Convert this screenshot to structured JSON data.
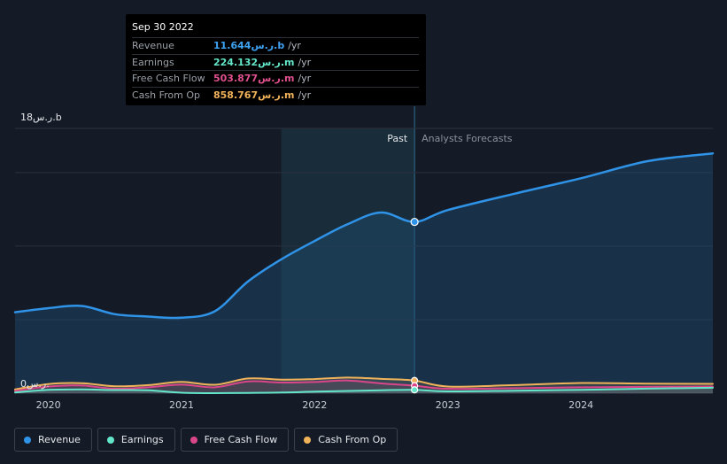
{
  "tooltip": {
    "date": "Sep 30 2022",
    "rows": [
      {
        "label": "Revenue",
        "value": "11.644ر.س.b",
        "unit": "/yr",
        "color": "#3fa3f4"
      },
      {
        "label": "Earnings",
        "value": "224.132ر.س.m",
        "unit": "/yr",
        "color": "#63e6c9"
      },
      {
        "label": "Free Cash Flow",
        "value": "503.877ر.س.m",
        "unit": "/yr",
        "color": "#e0508e"
      },
      {
        "label": "Cash From Op",
        "value": "858.767ر.س.m",
        "unit": "/yr",
        "color": "#f1b35a"
      }
    ]
  },
  "legend": [
    {
      "label": "Revenue",
      "color": "#2f93e8"
    },
    {
      "label": "Earnings",
      "color": "#63e6c9"
    },
    {
      "label": "Free Cash Flow",
      "color": "#d9468a"
    },
    {
      "label": "Cash From Op",
      "color": "#f1b35a"
    }
  ],
  "chart_data": {
    "type": "area",
    "y_top_label": "18ر.س.b",
    "y_zero_label": "0ر.س.",
    "past_label": "Past",
    "forecast_label": "Analysts Forecasts",
    "ylim": [
      0,
      18
    ],
    "xlim": [
      2019.75,
      2024.99
    ],
    "divider_x": 2022.75,
    "highlight_start": 2021.75,
    "x_ticks": [
      {
        "v": 2020.0,
        "label": "2020"
      },
      {
        "v": 2021.0,
        "label": "2021"
      },
      {
        "v": 2022.0,
        "label": "2022"
      },
      {
        "v": 2023.0,
        "label": "2023"
      },
      {
        "v": 2024.0,
        "label": "2024"
      }
    ],
    "y_grid": [
      0,
      5,
      10,
      15,
      18
    ],
    "series": [
      {
        "name": "Revenue",
        "color": "#2f93e8",
        "fill": true,
        "points": [
          [
            2019.75,
            5.5
          ],
          [
            2020.0,
            5.78
          ],
          [
            2020.25,
            5.93
          ],
          [
            2020.5,
            5.37
          ],
          [
            2020.75,
            5.21
          ],
          [
            2021.0,
            5.13
          ],
          [
            2021.25,
            5.57
          ],
          [
            2021.5,
            7.6
          ],
          [
            2021.75,
            9.1
          ],
          [
            2022.0,
            10.35
          ],
          [
            2022.25,
            11.5
          ],
          [
            2022.5,
            12.28
          ],
          [
            2022.75,
            11.644
          ],
          [
            2023.0,
            12.45
          ],
          [
            2023.5,
            13.56
          ],
          [
            2024.0,
            14.61
          ],
          [
            2024.5,
            15.77
          ],
          [
            2024.99,
            16.3
          ]
        ]
      },
      {
        "name": "Cash From Op",
        "color": "#f1b35a",
        "fill": false,
        "points": [
          [
            2019.75,
            0.25
          ],
          [
            2020.0,
            0.62
          ],
          [
            2020.25,
            0.68
          ],
          [
            2020.5,
            0.47
          ],
          [
            2020.75,
            0.55
          ],
          [
            2021.0,
            0.77
          ],
          [
            2021.25,
            0.57
          ],
          [
            2021.5,
            1.0
          ],
          [
            2021.75,
            0.92
          ],
          [
            2022.0,
            0.96
          ],
          [
            2022.25,
            1.06
          ],
          [
            2022.5,
            0.97
          ],
          [
            2022.75,
            0.858767
          ],
          [
            2023.0,
            0.45
          ],
          [
            2023.5,
            0.55
          ],
          [
            2024.0,
            0.69
          ],
          [
            2024.5,
            0.65
          ],
          [
            2024.99,
            0.63
          ]
        ]
      },
      {
        "name": "Free Cash Flow",
        "color": "#d9468a",
        "fill": false,
        "points": [
          [
            2019.75,
            0.15
          ],
          [
            2020.0,
            0.45
          ],
          [
            2020.25,
            0.52
          ],
          [
            2020.5,
            0.3
          ],
          [
            2020.75,
            0.4
          ],
          [
            2021.0,
            0.58
          ],
          [
            2021.25,
            0.4
          ],
          [
            2021.5,
            0.8
          ],
          [
            2021.75,
            0.72
          ],
          [
            2022.0,
            0.76
          ],
          [
            2022.25,
            0.86
          ],
          [
            2022.5,
            0.66
          ],
          [
            2022.75,
            0.503877
          ],
          [
            2023.0,
            0.3
          ],
          [
            2023.5,
            0.34
          ],
          [
            2024.0,
            0.4
          ],
          [
            2024.5,
            0.43
          ],
          [
            2024.99,
            0.45
          ]
        ]
      },
      {
        "name": "Earnings",
        "color": "#63e6c9",
        "fill": false,
        "points": [
          [
            2019.75,
            0.05
          ],
          [
            2020.0,
            0.22
          ],
          [
            2020.25,
            0.25
          ],
          [
            2020.5,
            0.21
          ],
          [
            2020.75,
            0.19
          ],
          [
            2021.0,
            0.03
          ],
          [
            2021.25,
            0.0
          ],
          [
            2021.5,
            0.02
          ],
          [
            2021.75,
            0.04
          ],
          [
            2022.0,
            0.1
          ],
          [
            2022.25,
            0.15
          ],
          [
            2022.5,
            0.2
          ],
          [
            2022.75,
            0.224132
          ],
          [
            2023.0,
            0.12
          ],
          [
            2023.5,
            0.17
          ],
          [
            2024.0,
            0.23
          ],
          [
            2024.5,
            0.31
          ],
          [
            2024.99,
            0.37
          ]
        ]
      }
    ]
  }
}
